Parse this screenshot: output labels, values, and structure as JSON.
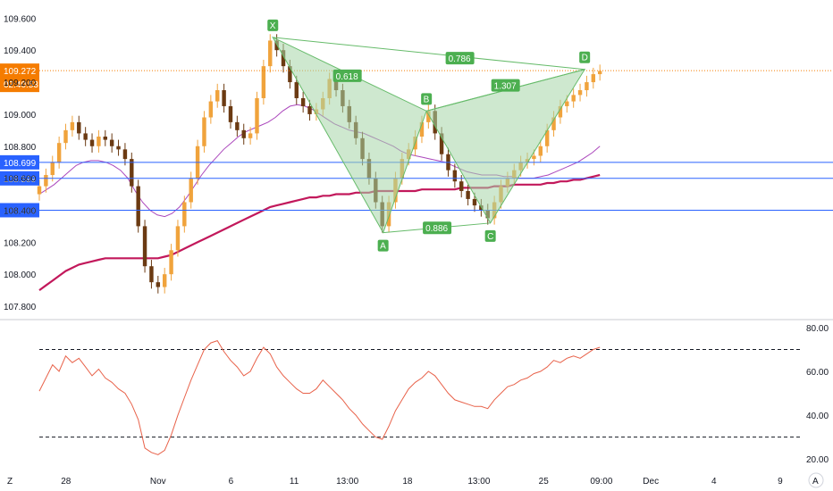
{
  "chart_data": [
    {
      "type": "candlestick",
      "title": "",
      "price_axis": {
        "ylim": [
          107.75,
          109.68
        ],
        "ticks": [
          "107.800",
          "108.000",
          "108.200",
          "108.400",
          "108.600",
          "108.800",
          "109.000",
          "109.200",
          "109.400",
          "109.600"
        ]
      },
      "time_axis": {
        "ticks": [
          "28",
          "Nov",
          "6",
          "11",
          "13:00",
          "18",
          "13:00",
          "25",
          "09:00",
          "Dec",
          "4",
          "9"
        ]
      },
      "current_price": {
        "label": "109.272",
        "countdown": "02:40:53",
        "color": "#f57c00"
      },
      "horizontal_lines": [
        {
          "label": "108.699",
          "value": 108.699,
          "color": "#2962ff"
        },
        {
          "label": "108.599",
          "value": 108.599,
          "color": "#2962ff"
        },
        {
          "label": "108.400",
          "value": 108.4,
          "color": "#2962ff"
        }
      ],
      "candles": {
        "bull_color": "#f0a33c",
        "bear_color": "#6b3a12",
        "closes": [
          108.55,
          108.62,
          108.7,
          108.82,
          108.9,
          108.95,
          108.88,
          108.84,
          108.8,
          108.86,
          108.84,
          108.8,
          108.78,
          108.72,
          108.55,
          108.3,
          108.05,
          107.95,
          107.92,
          108.0,
          108.15,
          108.3,
          108.45,
          108.6,
          108.8,
          108.98,
          109.08,
          109.15,
          109.05,
          108.95,
          108.9,
          108.85,
          108.88,
          109.1,
          109.3,
          109.46,
          109.4,
          109.3,
          109.2,
          109.1,
          109.05,
          109.0,
          109.03,
          109.1,
          109.22,
          109.15,
          109.05,
          108.95,
          108.85,
          108.72,
          108.6,
          108.45,
          108.3,
          108.45,
          108.6,
          108.72,
          108.78,
          108.86,
          108.95,
          109.02,
          108.88,
          108.75,
          108.65,
          108.58,
          108.52,
          108.47,
          108.43,
          108.4,
          108.35,
          108.45,
          108.55,
          108.6,
          108.65,
          108.7,
          108.72,
          108.74,
          108.8,
          108.9,
          108.98,
          109.05,
          109.08,
          109.12,
          109.15,
          109.2,
          109.25,
          109.27
        ],
        "opens": [
          108.5,
          108.55,
          108.62,
          108.7,
          108.82,
          108.9,
          108.95,
          108.88,
          108.84,
          108.8,
          108.86,
          108.84,
          108.8,
          108.78,
          108.72,
          108.55,
          108.3,
          108.05,
          107.95,
          107.92,
          108.0,
          108.15,
          108.3,
          108.45,
          108.6,
          108.8,
          108.98,
          109.08,
          109.15,
          109.05,
          108.95,
          108.9,
          108.85,
          108.88,
          109.1,
          109.3,
          109.46,
          109.4,
          109.3,
          109.2,
          109.1,
          109.05,
          109.0,
          109.03,
          109.1,
          109.22,
          109.15,
          109.05,
          108.95,
          108.85,
          108.72,
          108.6,
          108.45,
          108.3,
          108.45,
          108.6,
          108.72,
          108.78,
          108.86,
          108.95,
          109.02,
          108.88,
          108.75,
          108.65,
          108.58,
          108.52,
          108.47,
          108.43,
          108.4,
          108.35,
          108.45,
          108.55,
          108.6,
          108.65,
          108.7,
          108.72,
          108.74,
          108.8,
          108.9,
          108.98,
          109.05,
          109.08,
          109.12,
          109.15,
          109.2,
          109.25
        ]
      },
      "moving_averages": [
        {
          "color": "#c2185b",
          "values": [
            107.9,
            107.93,
            107.96,
            107.99,
            108.02,
            108.04,
            108.06,
            108.07,
            108.08,
            108.09,
            108.1,
            108.1,
            108.1,
            108.1,
            108.1,
            108.1,
            108.1,
            108.1,
            108.1,
            108.11,
            108.12,
            108.14,
            108.16,
            108.18,
            108.2,
            108.22,
            108.24,
            108.26,
            108.28,
            108.3,
            108.32,
            108.34,
            108.36,
            108.38,
            108.4,
            108.42,
            108.43,
            108.44,
            108.45,
            108.46,
            108.47,
            108.48,
            108.48,
            108.49,
            108.49,
            108.5,
            108.5,
            108.5,
            108.51,
            108.51,
            108.51,
            108.52,
            108.52,
            108.52,
            108.52,
            108.52,
            108.52,
            108.52,
            108.53,
            108.53,
            108.53,
            108.53,
            108.53,
            108.53,
            108.54,
            108.54,
            108.54,
            108.54,
            108.54,
            108.55,
            108.55,
            108.55,
            108.56,
            108.56,
            108.56,
            108.56,
            108.56,
            108.57,
            108.57,
            108.58,
            108.58,
            108.59,
            108.59,
            108.6,
            108.61,
            108.62
          ]
        },
        {
          "color": "#ab47bc",
          "values": [
            108.5,
            108.53,
            108.56,
            108.6,
            108.64,
            108.68,
            108.7,
            108.71,
            108.71,
            108.7,
            108.68,
            108.65,
            108.6,
            108.52,
            108.45,
            108.4,
            108.37,
            108.36,
            108.38,
            108.42,
            108.48,
            108.55,
            108.62,
            108.68,
            108.73,
            108.78,
            108.82,
            108.86,
            108.89,
            108.91,
            108.93,
            108.95,
            108.98,
            109.02,
            109.05,
            109.06,
            109.05,
            109.03,
            109.0,
            108.97,
            108.94,
            108.92,
            108.9,
            108.89,
            108.88,
            108.86,
            108.84,
            108.82,
            108.8,
            108.77,
            108.75,
            108.74,
            108.73,
            108.72,
            108.71,
            108.7,
            108.68,
            108.66,
            108.64,
            108.63,
            108.62,
            108.62,
            108.62,
            108.61,
            108.61,
            108.6,
            108.6,
            108.6,
            108.61,
            108.62,
            108.64,
            108.66,
            108.68,
            108.7,
            108.73,
            108.76,
            108.8
          ]
        }
      ],
      "pattern": {
        "fill": "#a5d6a7",
        "stroke": "#66bb6a",
        "points": [
          {
            "name": "X",
            "t": 0.307,
            "price": 109.48
          },
          {
            "name": "A",
            "t": 0.452,
            "price": 108.26
          },
          {
            "name": "B",
            "t": 0.509,
            "price": 109.02
          },
          {
            "name": "C",
            "t": 0.593,
            "price": 108.32
          },
          {
            "name": "D",
            "t": 0.717,
            "price": 109.28
          }
        ],
        "ratios": [
          {
            "label": "0.618",
            "at": 0.405,
            "price": 109.24
          },
          {
            "label": "0.786",
            "at": 0.553,
            "price": 109.35
          },
          {
            "label": "1.307",
            "at": 0.613,
            "price": 109.18
          },
          {
            "label": "0.886",
            "at": 0.523,
            "price": 108.29
          }
        ]
      }
    },
    {
      "type": "line",
      "title": "",
      "ylim": [
        16,
        82
      ],
      "ticks": [
        "20.00",
        "40.00",
        "60.00",
        "80.00"
      ],
      "levels": [
        70,
        30
      ],
      "color": "#e8624a",
      "values": [
        51,
        57,
        63,
        60,
        67,
        64,
        66,
        62,
        58,
        61,
        57,
        55,
        52,
        50,
        45,
        38,
        25,
        23,
        22,
        24,
        31,
        40,
        48,
        56,
        63,
        70,
        73,
        74,
        69,
        65,
        62,
        58,
        60,
        66,
        71,
        68,
        62,
        58,
        55,
        52,
        50,
        50,
        52,
        56,
        53,
        50,
        47,
        43,
        40,
        36,
        33,
        30,
        29,
        35,
        42,
        47,
        52,
        55,
        57,
        60,
        58,
        54,
        50,
        47,
        46,
        45,
        44,
        44,
        43,
        47,
        50,
        53,
        54,
        56,
        57,
        59,
        60,
        62,
        65,
        64,
        66,
        67,
        66,
        68,
        70,
        71
      ]
    }
  ],
  "footer": {
    "left_icon": "Z",
    "right_icon": "A"
  }
}
